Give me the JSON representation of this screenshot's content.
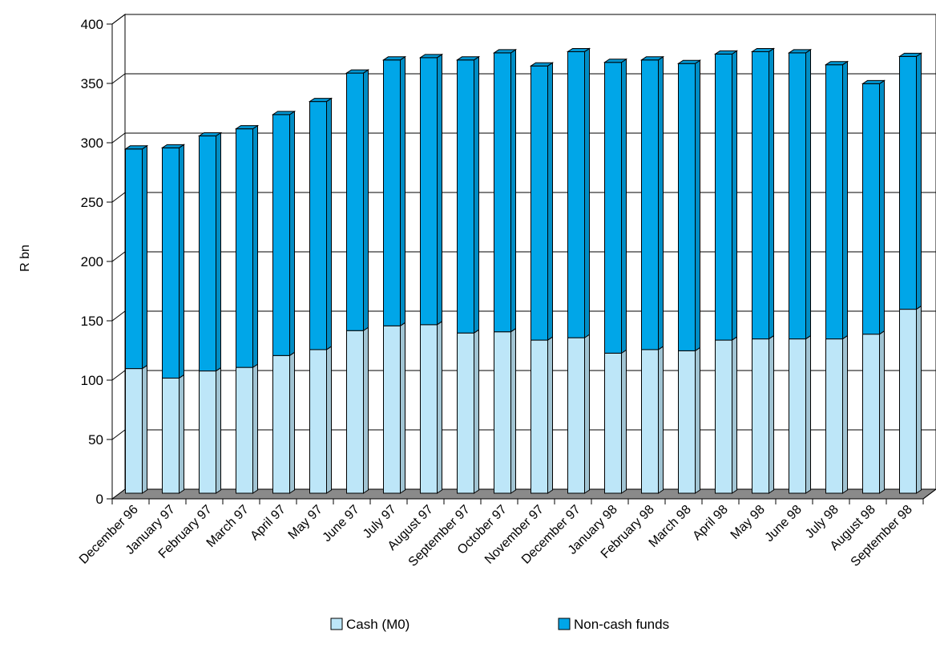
{
  "chart_data": {
    "type": "bar",
    "stacked": true,
    "three_d": true,
    "title": "",
    "xlabel": "",
    "ylabel": "R bn",
    "ylim": [
      0,
      400
    ],
    "yticks": [
      0,
      50,
      100,
      150,
      200,
      250,
      300,
      350,
      400
    ],
    "grid": true,
    "legend_position": "bottom",
    "categories": [
      "December 96",
      "January 97",
      "February 97",
      "March 97",
      "April 97",
      "May 97",
      "June 97",
      "July 97",
      "August 97",
      "September 97",
      "October 97",
      "November 97",
      "December 97",
      "January 98",
      "February 98",
      "March 98",
      "April 98",
      "May 98",
      "June 98",
      "July 98",
      "August 98",
      "September 98"
    ],
    "series": [
      {
        "name": "Cash (M0)",
        "color": "#bde6f8",
        "values": [
          105,
          97,
          103,
          106,
          116,
          121,
          137,
          141,
          142,
          135,
          136,
          129,
          131,
          118,
          121,
          120,
          129,
          130,
          130,
          130,
          134,
          155
        ]
      },
      {
        "name": "Non-cash funds",
        "color": "#00a6e8",
        "values": [
          185,
          194,
          198,
          201,
          203,
          209,
          217,
          224,
          225,
          230,
          235,
          231,
          241,
          245,
          244,
          242,
          241,
          242,
          241,
          231,
          211,
          213
        ]
      }
    ]
  }
}
